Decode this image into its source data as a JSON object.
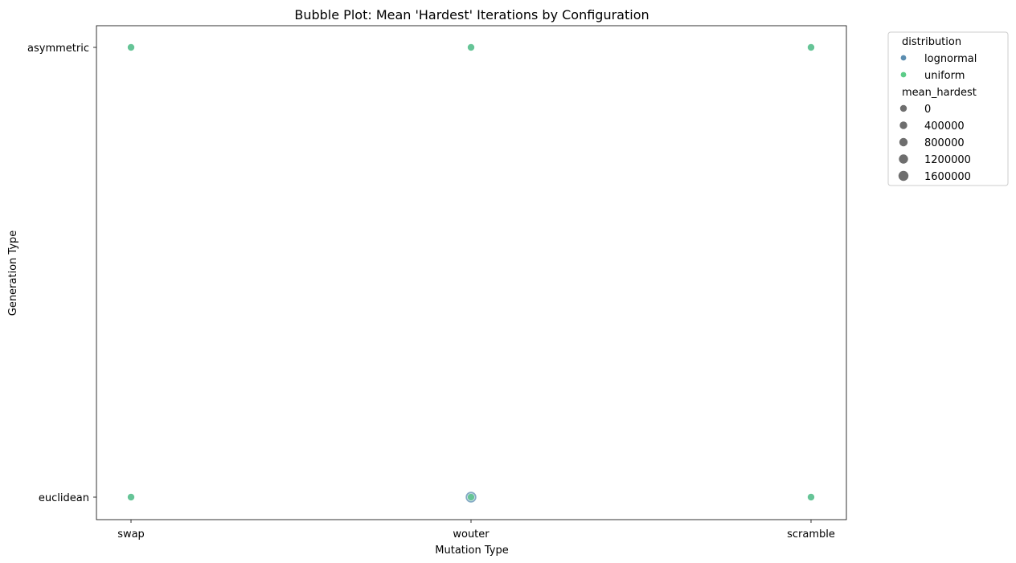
{
  "chart_data": {
    "type": "scatter",
    "title": "Bubble Plot: Mean 'Hardest' Iterations by Configuration",
    "xlabel": "Mutation Type",
    "ylabel": "Generation Type",
    "x_categories": [
      "swap",
      "wouter",
      "scramble"
    ],
    "y_categories": [
      "euclidean",
      "asymmetric"
    ],
    "grid": false,
    "legend_placement": "outside-top-right",
    "hue_title": "distribution",
    "size_title": "mean_hardest",
    "hue": [
      {
        "name": "lognormal",
        "color": "#5b8db0"
      },
      {
        "name": "uniform",
        "color": "#5ccc88"
      }
    ],
    "size_legend": [
      "0",
      "400000",
      "800000",
      "1200000",
      "1600000"
    ],
    "points": [
      {
        "x": "swap",
        "y": "asymmetric",
        "distribution": "lognormal",
        "mean_hardest": 20000
      },
      {
        "x": "swap",
        "y": "asymmetric",
        "distribution": "uniform",
        "mean_hardest": 20000
      },
      {
        "x": "wouter",
        "y": "asymmetric",
        "distribution": "lognormal",
        "mean_hardest": 20000
      },
      {
        "x": "wouter",
        "y": "asymmetric",
        "distribution": "uniform",
        "mean_hardest": 20000
      },
      {
        "x": "scramble",
        "y": "asymmetric",
        "distribution": "lognormal",
        "mean_hardest": 20000
      },
      {
        "x": "scramble",
        "y": "asymmetric",
        "distribution": "uniform",
        "mean_hardest": 20000
      },
      {
        "x": "swap",
        "y": "euclidean",
        "distribution": "lognormal",
        "mean_hardest": 20000
      },
      {
        "x": "swap",
        "y": "euclidean",
        "distribution": "uniform",
        "mean_hardest": 20000
      },
      {
        "x": "wouter",
        "y": "euclidean",
        "distribution": "lognormal",
        "mean_hardest": 1600000
      },
      {
        "x": "wouter",
        "y": "euclidean",
        "distribution": "uniform",
        "mean_hardest": 20000
      },
      {
        "x": "scramble",
        "y": "euclidean",
        "distribution": "lognormal",
        "mean_hardest": 20000
      },
      {
        "x": "scramble",
        "y": "euclidean",
        "distribution": "uniform",
        "mean_hardest": 20000
      }
    ]
  }
}
